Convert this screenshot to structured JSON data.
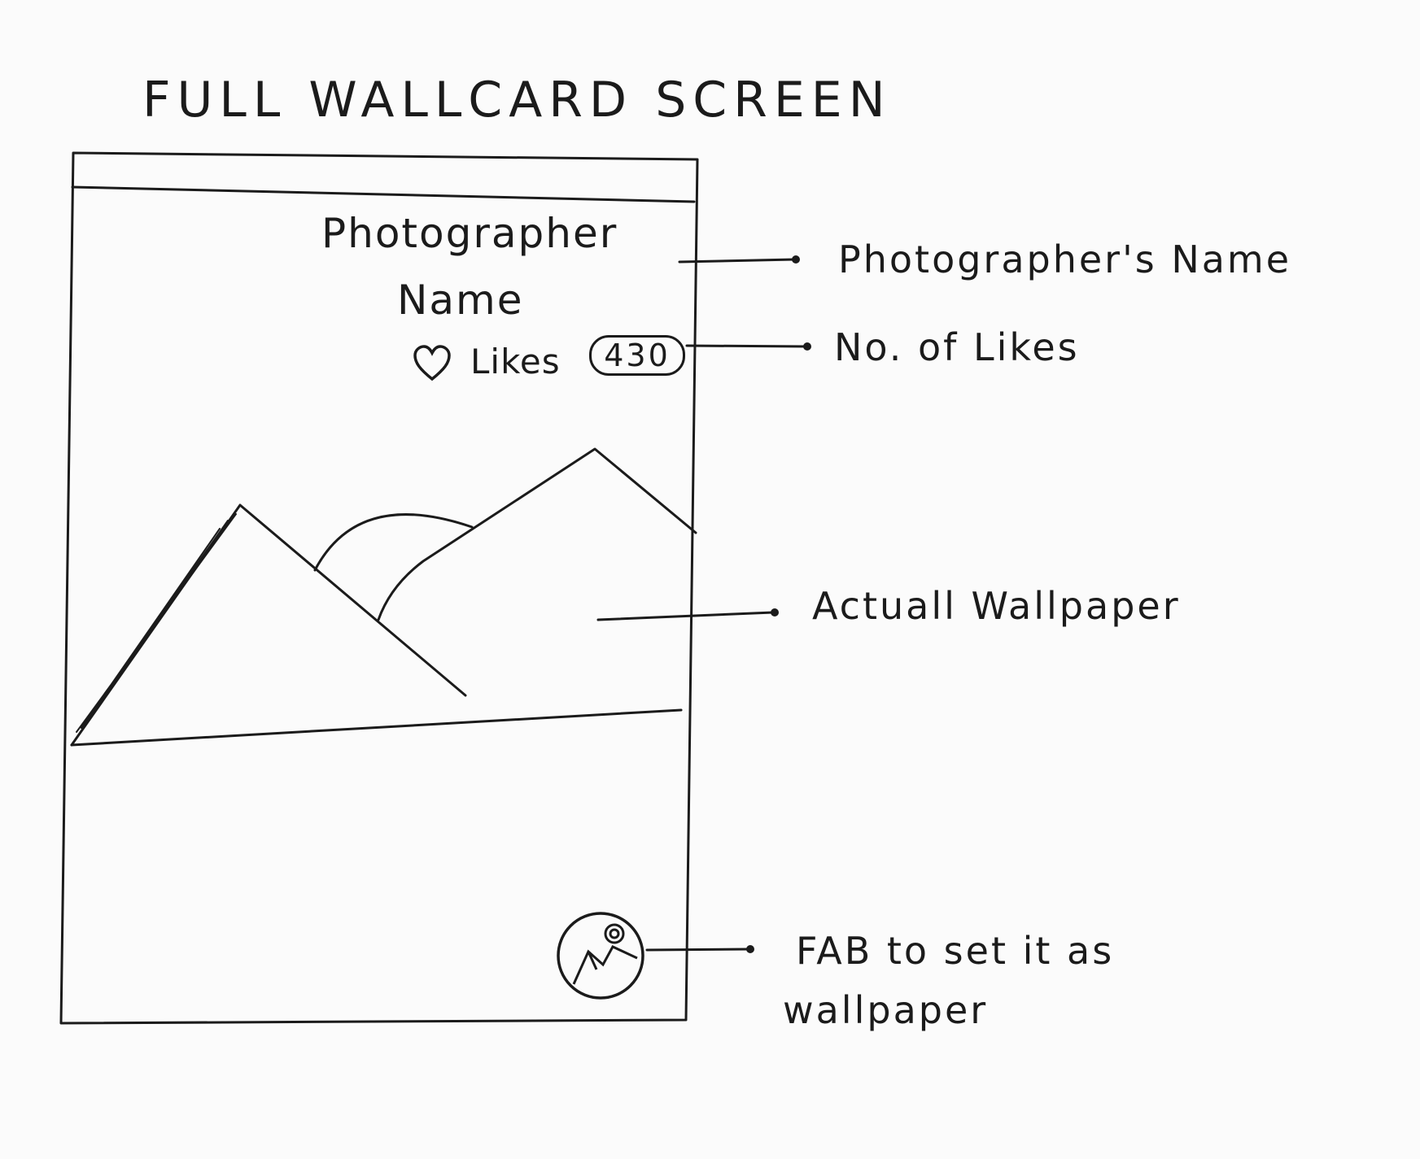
{
  "title": "Full WallCard Screen",
  "phone": {
    "photographer_line1": "Photographer",
    "photographer_line2": "Name",
    "likes_label": "Likes",
    "likes_count": "430",
    "heart_icon": "heart-icon",
    "fab_icon": "set-wallpaper-icon"
  },
  "annotations": {
    "photographer": "Photographer's Name",
    "likes": "No. of Likes",
    "wallpaper": "Actuall Wallpaper",
    "fab_line1": "FAB to set it as",
    "fab_line2": "wallpaper"
  }
}
